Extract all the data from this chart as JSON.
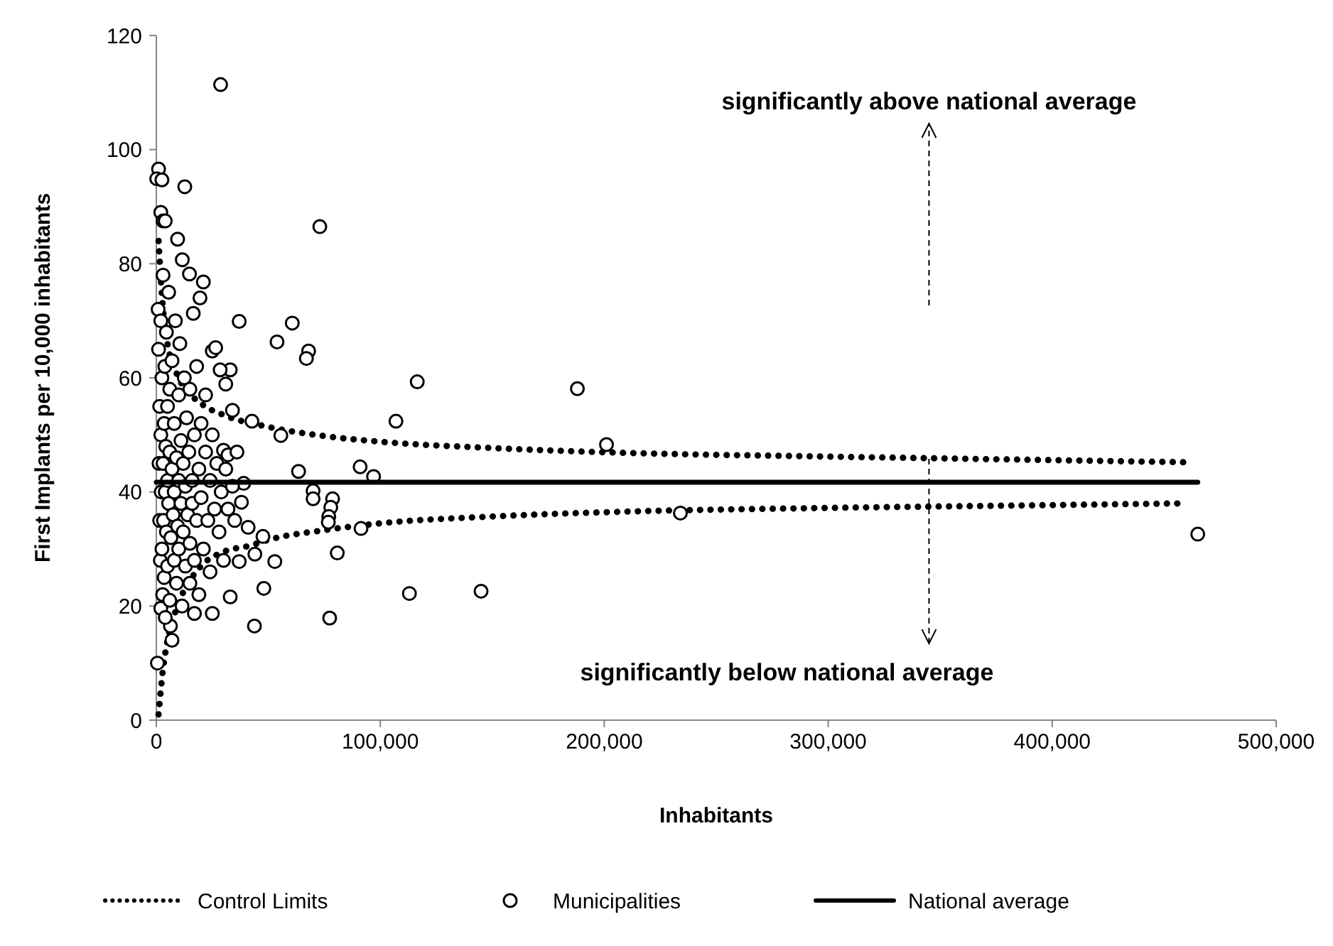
{
  "chart_data": {
    "type": "scatter",
    "xlabel": "Inhabitants",
    "ylabel": "First Implants per 10,000 inhabitants",
    "xlim": [
      0,
      500000
    ],
    "xticks": [
      {
        "value": 0,
        "label": "0"
      },
      {
        "value": 100000,
        "label": "100,000"
      },
      {
        "value": 200000,
        "label": "200,000"
      },
      {
        "value": 300000,
        "label": "300,000"
      },
      {
        "value": 400000,
        "label": "400,000"
      },
      {
        "value": 500000,
        "label": "500,000"
      }
    ],
    "ylim": [
      0,
      120
    ],
    "yticks": [
      0,
      20,
      40,
      60,
      80,
      100,
      120
    ],
    "grid": false,
    "legend": "bottom",
    "annotations": [
      "significantly above national average",
      {
        "text": "significantly below national average",
        "x": 345000,
        "y": 45.8
      }
    ],
    "series": [
      {
        "name": "Control Limits",
        "type": "line",
        "color": "#000000",
        "line_style": "dotted",
        "marker": "none",
        "x": [
          1000,
          3000,
          5000,
          10000,
          20000,
          30000,
          50000,
          75000,
          100000,
          150000,
          205000,
          300000,
          380000,
          460000
        ],
        "values": [
          84,
          72,
          66,
          60,
          55.5,
          53.5,
          51.4,
          49.8,
          48.8,
          47.7,
          46.9,
          46.2,
          45.7,
          45.2
        ]
      },
      {
        "type": "line",
        "color": "#000000",
        "line_style": "dotted",
        "marker": "none",
        "x": [
          1000,
          3000,
          5000,
          10000,
          20000,
          30000,
          42000,
          50000,
          75000,
          100000,
          150000,
          205000,
          300000,
          380000,
          460000
        ],
        "values": [
          1,
          9,
          14,
          20.5,
          27,
          29.5,
          30.6,
          31.6,
          33.3,
          34.5,
          35.7,
          36.5,
          37.2,
          37.6,
          38.0
        ]
      },
      {
        "name": "Municipalities",
        "type": "scatter",
        "color": "#000000",
        "marker": "circle",
        "x": [
          28700,
          73000,
          37000,
          60700,
          53900,
          68000,
          67000,
          116500,
          188000,
          107000,
          55600,
          201000,
          63500,
          91000,
          97000,
          70000,
          70000,
          78700,
          77900,
          77000,
          76800,
          91400,
          234000,
          80800,
          113000,
          145000,
          77400,
          48000,
          52900,
          43800,
          465000,
          12700,
          9500,
          21000,
          19500,
          16500,
          14800,
          11600,
          1000,
          200,
          2500,
          2000,
          3000,
          4000,
          25000,
          26500,
          33000,
          28500,
          31000,
          30000,
          32000,
          42700,
          34000,
          39000,
          38000,
          41000,
          47600,
          44000,
          37000,
          33000,
          25000,
          17000,
          6300,
          2000,
          500,
          800,
          1000,
          1200,
          1500,
          1500,
          1800,
          2000,
          2000,
          2200,
          2500,
          2500,
          2800,
          3000,
          3000,
          3200,
          3500,
          3500,
          3800,
          4000,
          4000,
          4200,
          4500,
          4500,
          5000,
          5000,
          5000,
          5500,
          5500,
          6000,
          6000,
          6000,
          6500,
          7000,
          7000,
          7000,
          7500,
          8000,
          8000,
          8000,
          8500,
          9000,
          9000,
          9500,
          10000,
          10000,
          10000,
          10500,
          11000,
          11000,
          11500,
          12000,
          12000,
          12500,
          13000,
          13000,
          13500,
          14000,
          14500,
          15000,
          15000,
          15000,
          16000,
          16000,
          17000,
          17000,
          18000,
          18000,
          19000,
          19000,
          20000,
          20000,
          21000,
          22000,
          22000,
          23000,
          24000,
          24000,
          25000,
          26000,
          27000,
          28000,
          29000,
          30000,
          31000,
          32000,
          34000,
          35000,
          36000
        ],
        "values": [
          111.4,
          86.5,
          69.9,
          69.6,
          66.3,
          64.7,
          63.4,
          59.3,
          58.1,
          52.4,
          49.9,
          48.3,
          43.6,
          44.4,
          42.7,
          40.2,
          38.8,
          38.8,
          37.3,
          35.7,
          34.7,
          33.6,
          36.3,
          29.3,
          22.2,
          22.6,
          17.9,
          23.1,
          27.8,
          16.5,
          32.6,
          93.5,
          84.3,
          76.8,
          74,
          71.3,
          78.2,
          80.7,
          96.6,
          94.9,
          94.7,
          89,
          87.5,
          87.5,
          64.7,
          65.3,
          61.4,
          61.4,
          58.9,
          47.3,
          46.5,
          52.4,
          54.3,
          41.5,
          38.2,
          33.8,
          32.2,
          29.1,
          27.8,
          21.6,
          18.7,
          18.7,
          16.5,
          19.6,
          10,
          72,
          65,
          45,
          35,
          55,
          28,
          50,
          70,
          40,
          60,
          30,
          22,
          45,
          78,
          35,
          52,
          25,
          62,
          40,
          18,
          48,
          33,
          68,
          55,
          27,
          42,
          38,
          75,
          47,
          21,
          58,
          32,
          44,
          63,
          14,
          36,
          52,
          28,
          40,
          70,
          46,
          24,
          34,
          57,
          42,
          30,
          66,
          38,
          49,
          20,
          45,
          33,
          60,
          27,
          41,
          53,
          36,
          47,
          24,
          31,
          58,
          42,
          38,
          50,
          28,
          35,
          62,
          44,
          22,
          39,
          52,
          30,
          47,
          57,
          35,
          42,
          26,
          50,
          37,
          45,
          33,
          40,
          28,
          44,
          37,
          41,
          35,
          47
        ]
      },
      {
        "name": "National average",
        "type": "line",
        "color": "#000000",
        "line_style": "solid",
        "marker": "none",
        "x": [
          0,
          465000
        ],
        "values": [
          41.7,
          41.7
        ]
      }
    ]
  }
}
